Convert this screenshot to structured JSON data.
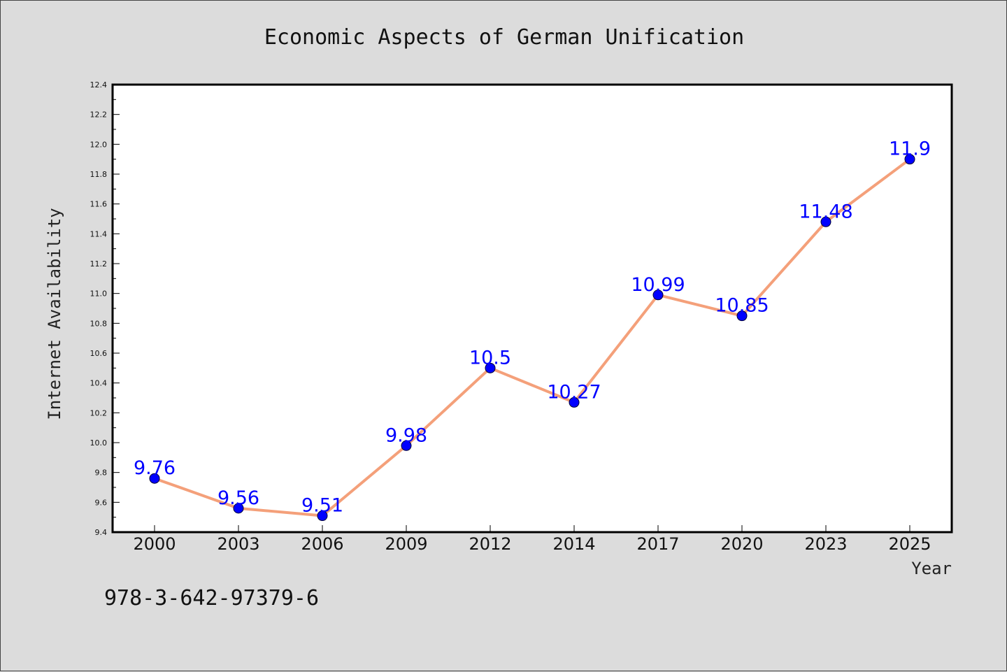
{
  "chart_data": {
    "type": "line",
    "title": "Economic Aspects of German Unification",
    "xlabel": "Year",
    "ylabel": "Internet Availability",
    "categories": [
      "2000",
      "2003",
      "2006",
      "2009",
      "2012",
      "2014",
      "2017",
      "2020",
      "2023",
      "2025"
    ],
    "values": [
      9.76,
      9.56,
      9.51,
      9.98,
      10.5,
      10.27,
      10.99,
      10.85,
      11.48,
      11.9
    ],
    "data_labels": [
      "9.76",
      "9.56",
      "9.51",
      "9.98",
      "10.5",
      "10.27",
      "10.99",
      "10.85",
      "11.48",
      "11.9"
    ],
    "ylim": [
      9.4,
      12.4
    ],
    "yticks": [
      "9.4",
      "9.6",
      "9.8",
      "10.0",
      "10.2",
      "10.4",
      "10.6",
      "10.8",
      "11.0",
      "11.2",
      "11.4",
      "11.6",
      "11.8",
      "12.0",
      "12.2",
      "12.4"
    ],
    "grid": false,
    "line_color": "#f4a07a",
    "marker_color": "#0000ff",
    "label_color": "#0000ff"
  },
  "footer": {
    "isbn": "978-3-642-97379-6"
  }
}
